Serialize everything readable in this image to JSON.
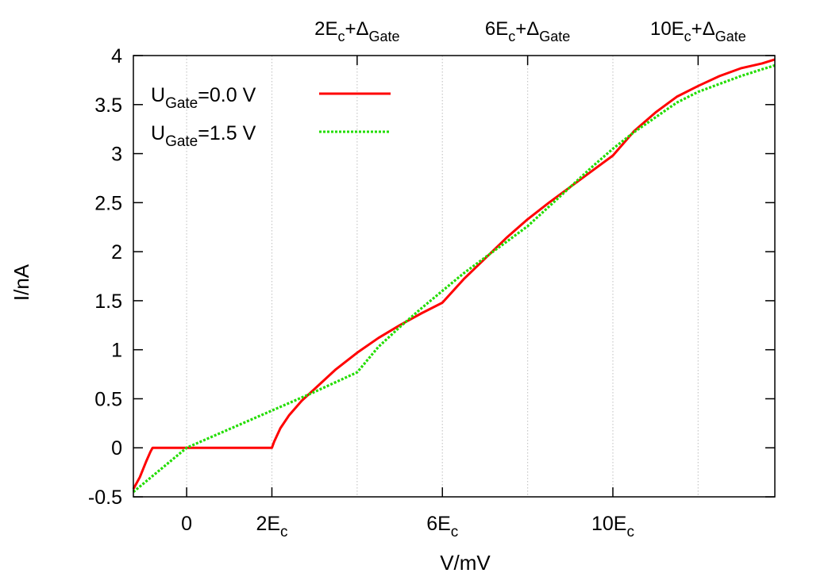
{
  "chart_data": {
    "type": "line",
    "xlabel": "V/mV",
    "ylabel": "I/nA",
    "xlim": [
      -1.25,
      13.8
    ],
    "ylim": [
      -0.5,
      4
    ],
    "y_ticks": [
      {
        "value": -0.5,
        "label": "-0.5"
      },
      {
        "value": 0,
        "label": "0"
      },
      {
        "value": 0.5,
        "label": "0.5"
      },
      {
        "value": 1,
        "label": "1"
      },
      {
        "value": 1.5,
        "label": "1.5"
      },
      {
        "value": 2,
        "label": "2"
      },
      {
        "value": 2.5,
        "label": "2.5"
      },
      {
        "value": 3,
        "label": "3"
      },
      {
        "value": 3.5,
        "label": "3.5"
      },
      {
        "value": 4,
        "label": "4"
      }
    ],
    "x_ticks": [
      {
        "value": 0,
        "main": "0",
        "sub": ""
      },
      {
        "value": 2,
        "main": "2E",
        "sub": "c"
      },
      {
        "value": 6,
        "main": "6E",
        "sub": "c"
      },
      {
        "value": 10,
        "main": "10E",
        "sub": "c"
      }
    ],
    "top_ticks": [
      {
        "value": 4,
        "main": "2E",
        "sub1": "c",
        "mid": "+Δ",
        "sub2": "Gate"
      },
      {
        "value": 8,
        "main": "6E",
        "sub1": "c",
        "mid": "+Δ",
        "sub2": "Gate"
      },
      {
        "value": 12,
        "main": "10E",
        "sub1": "c",
        "mid": "+Δ",
        "sub2": "Gate"
      }
    ],
    "gridlines_x": [
      0,
      2,
      4,
      6,
      8,
      10,
      12
    ],
    "grid": true,
    "legend_position": "top-left",
    "series": [
      {
        "name_main": "U",
        "name_sub": "Gate",
        "name_rest": "=0.0 V",
        "color": "#ff0000",
        "dash": "solid",
        "x": [
          -1.25,
          -1.1,
          -0.95,
          -0.85,
          -0.8,
          -0.5,
          0,
          1,
          2,
          2.05,
          2.2,
          2.4,
          2.7,
          3.0,
          3.5,
          4.0,
          4.5,
          5.0,
          5.5,
          6.0,
          6.5,
          7.0,
          7.5,
          8.0,
          8.5,
          9.0,
          9.5,
          10.0,
          10.5,
          11.0,
          11.5,
          12.0,
          12.5,
          13.0,
          13.5,
          13.8
        ],
        "y": [
          -0.42,
          -0.3,
          -0.14,
          -0.04,
          0.0,
          0.0,
          0.0,
          0.0,
          0.0,
          0.06,
          0.2,
          0.33,
          0.48,
          0.6,
          0.8,
          0.97,
          1.12,
          1.25,
          1.37,
          1.48,
          1.72,
          1.93,
          2.14,
          2.33,
          2.5,
          2.66,
          2.82,
          2.98,
          3.23,
          3.42,
          3.58,
          3.69,
          3.79,
          3.87,
          3.92,
          3.96
        ]
      },
      {
        "name_main": "U",
        "name_sub": "Gate",
        "name_rest": "=1.5 V",
        "color": "#22dd00",
        "dash": "dotted",
        "x": [
          -1.25,
          0,
          1,
          2,
          3,
          4,
          4.5,
          5,
          5.5,
          6,
          6.5,
          7,
          7.5,
          8,
          8.5,
          9,
          9.5,
          10,
          10.5,
          11,
          11.5,
          12,
          12.5,
          13,
          13.5,
          13.8
        ],
        "y": [
          -0.45,
          0.0,
          0.19,
          0.38,
          0.57,
          0.77,
          1.03,
          1.23,
          1.42,
          1.6,
          1.78,
          1.94,
          2.1,
          2.26,
          2.46,
          2.66,
          2.86,
          3.05,
          3.22,
          3.37,
          3.52,
          3.63,
          3.71,
          3.79,
          3.86,
          3.9
        ]
      }
    ]
  }
}
